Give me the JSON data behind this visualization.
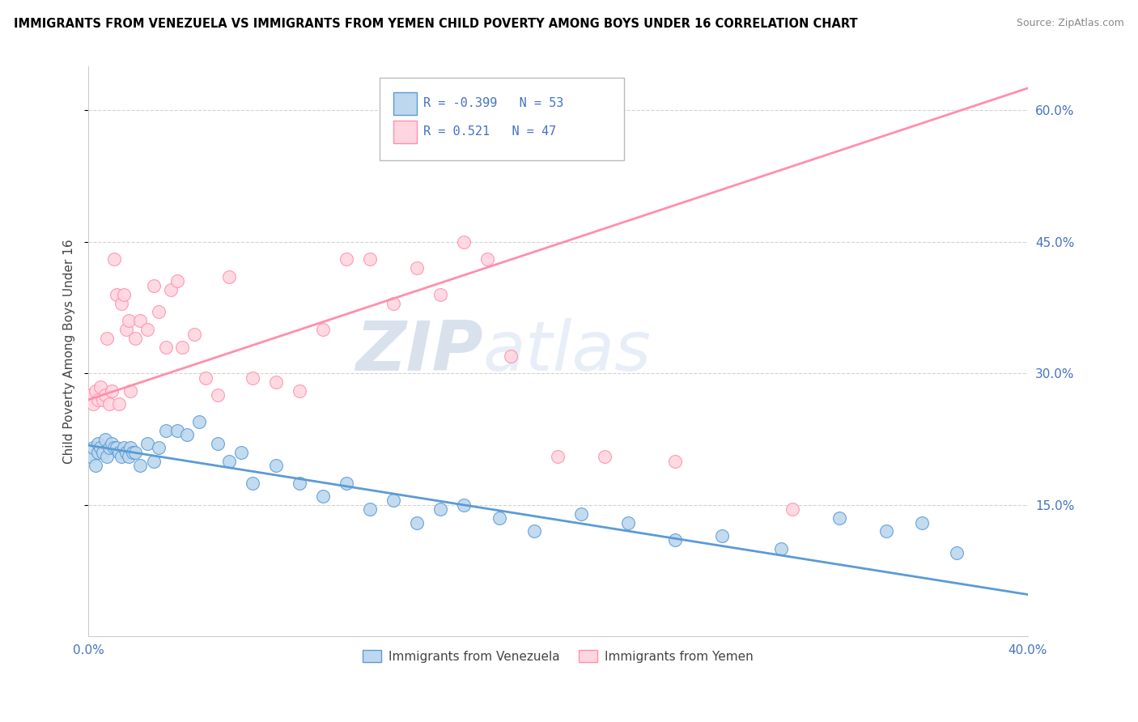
{
  "title": "IMMIGRANTS FROM VENEZUELA VS IMMIGRANTS FROM YEMEN CHILD POVERTY AMONG BOYS UNDER 16 CORRELATION CHART",
  "source": "Source: ZipAtlas.com",
  "ylabel": "Child Poverty Among Boys Under 16",
  "xlim": [
    0.0,
    0.4
  ],
  "ylim": [
    0.0,
    0.65
  ],
  "xticks": [
    0.0,
    0.1,
    0.2,
    0.3,
    0.4
  ],
  "yticks": [
    0.15,
    0.3,
    0.45,
    0.6
  ],
  "xtick_labels": [
    "0.0%",
    "",
    "",
    "",
    "40.0%"
  ],
  "ytick_labels": [
    "15.0%",
    "30.0%",
    "45.0%",
    "60.0%"
  ],
  "venezuela_color": "#5B9BD5",
  "venezuela_face": "#BDD7EE",
  "yemen_color": "#FF8FAB",
  "yemen_face": "#FFD6E0",
  "R_venezuela": -0.399,
  "N_venezuela": 53,
  "R_yemen": 0.521,
  "N_yemen": 47,
  "legend_label_1": "Immigrants from Venezuela",
  "legend_label_2": "Immigrants from Yemen",
  "watermark_zip": "ZIP",
  "watermark_atlas": "atlas",
  "venezuela_x": [
    0.001,
    0.002,
    0.003,
    0.004,
    0.004,
    0.005,
    0.006,
    0.007,
    0.008,
    0.009,
    0.01,
    0.011,
    0.012,
    0.013,
    0.014,
    0.015,
    0.016,
    0.017,
    0.018,
    0.019,
    0.02,
    0.022,
    0.025,
    0.028,
    0.03,
    0.033,
    0.038,
    0.042,
    0.047,
    0.055,
    0.06,
    0.065,
    0.07,
    0.08,
    0.09,
    0.1,
    0.11,
    0.12,
    0.13,
    0.14,
    0.15,
    0.16,
    0.175,
    0.19,
    0.21,
    0.23,
    0.25,
    0.27,
    0.295,
    0.32,
    0.34,
    0.355,
    0.37
  ],
  "venezuela_y": [
    0.205,
    0.215,
    0.195,
    0.21,
    0.22,
    0.215,
    0.21,
    0.225,
    0.205,
    0.215,
    0.22,
    0.215,
    0.215,
    0.21,
    0.205,
    0.215,
    0.21,
    0.205,
    0.215,
    0.21,
    0.21,
    0.195,
    0.22,
    0.2,
    0.215,
    0.235,
    0.235,
    0.23,
    0.245,
    0.22,
    0.2,
    0.21,
    0.175,
    0.195,
    0.175,
    0.16,
    0.175,
    0.145,
    0.155,
    0.13,
    0.145,
    0.15,
    0.135,
    0.12,
    0.14,
    0.13,
    0.11,
    0.115,
    0.1,
    0.135,
    0.12,
    0.13,
    0.095
  ],
  "yemen_x": [
    0.001,
    0.002,
    0.003,
    0.004,
    0.005,
    0.006,
    0.007,
    0.008,
    0.009,
    0.01,
    0.011,
    0.012,
    0.013,
    0.014,
    0.015,
    0.016,
    0.017,
    0.018,
    0.02,
    0.022,
    0.025,
    0.028,
    0.03,
    0.033,
    0.035,
    0.038,
    0.04,
    0.045,
    0.05,
    0.055,
    0.06,
    0.07,
    0.08,
    0.09,
    0.1,
    0.11,
    0.12,
    0.13,
    0.14,
    0.15,
    0.16,
    0.17,
    0.18,
    0.2,
    0.22,
    0.25,
    0.3
  ],
  "yemen_y": [
    0.275,
    0.265,
    0.28,
    0.27,
    0.285,
    0.27,
    0.275,
    0.34,
    0.265,
    0.28,
    0.43,
    0.39,
    0.265,
    0.38,
    0.39,
    0.35,
    0.36,
    0.28,
    0.34,
    0.36,
    0.35,
    0.4,
    0.37,
    0.33,
    0.395,
    0.405,
    0.33,
    0.345,
    0.295,
    0.275,
    0.41,
    0.295,
    0.29,
    0.28,
    0.35,
    0.43,
    0.43,
    0.38,
    0.42,
    0.39,
    0.45,
    0.43,
    0.32,
    0.205,
    0.205,
    0.2,
    0.145
  ],
  "ven_trend_x": [
    0.0,
    0.4
  ],
  "ven_trend_y": [
    0.218,
    0.048
  ],
  "yem_trend_x": [
    0.0,
    0.4
  ],
  "yem_trend_y": [
    0.27,
    0.625
  ]
}
